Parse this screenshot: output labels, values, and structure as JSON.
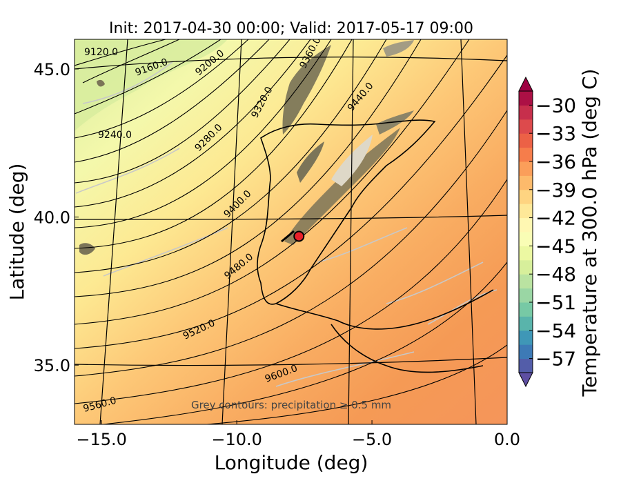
{
  "chart_data": {
    "type": "contour-map",
    "title": "Init: 2017-04-30 00:00; Valid: 2017-05-17 09:00",
    "xlabel": "Longitude (deg)",
    "ylabel": "Latitude (deg)",
    "xlim": [
      -16,
      0
    ],
    "ylim": [
      33,
      46
    ],
    "x_ticks": [
      -15,
      -10,
      -5,
      0
    ],
    "x_tick_labels": [
      "−15.0",
      "−10.0",
      "−5.0",
      "0.0"
    ],
    "y_ticks": [
      35,
      40,
      45
    ],
    "y_tick_labels": [
      "35.0",
      "40.0",
      "45.0"
    ],
    "colorbar": {
      "label": "Temperature at 300.0 hPa (deg C)",
      "min": -58.5,
      "max": -28.5,
      "step": 1.5,
      "ticks": [
        -57,
        -54,
        -51,
        -48,
        -45,
        -42,
        -39,
        -36,
        -33,
        -30
      ],
      "tick_labels": [
        "−57",
        "−54",
        "−51",
        "−48",
        "−45",
        "−42",
        "−39",
        "−36",
        "−33",
        "−30"
      ],
      "extend": "both",
      "colormap": "Spectral_r"
    },
    "height_contours": {
      "units": "m",
      "levels": [
        9120,
        9160,
        9200,
        9240,
        9280,
        9320,
        9360,
        9400,
        9440,
        9480,
        9520,
        9560,
        9600
      ],
      "labels": [
        "9120.0",
        "9160.0",
        "9200.0",
        "9240.0",
        "9280.0",
        "9320.0",
        "9360.0",
        "9400.0",
        "9440.0",
        "9480.0",
        "9520.0",
        "9560.0",
        "9600.0"
      ],
      "color": "#000000"
    },
    "temperature_field": {
      "northwest": -46,
      "center": -42,
      "southeast": -37
    },
    "marker": {
      "lon": -7.7,
      "lat": 39.35,
      "color": "#e8202a"
    },
    "annotation": "Grey contours: precipitation ≥ 0.5 mm"
  }
}
